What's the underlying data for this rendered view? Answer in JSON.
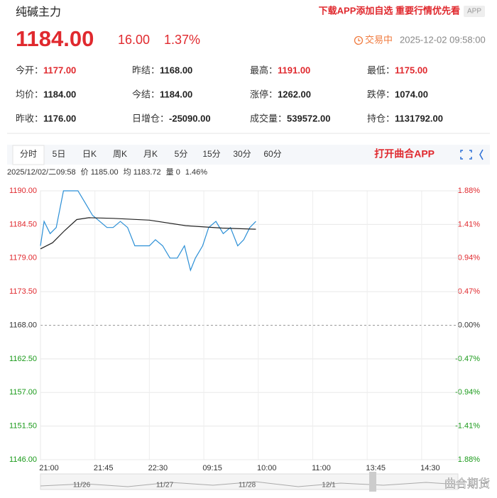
{
  "header": {
    "title": "纯碱主力",
    "promo": "下载APP添加自选 重要行情优先看",
    "badge": "APP"
  },
  "quote": {
    "price": "1184.00",
    "change": "16.00",
    "percent": "1.37%",
    "status": "交易中",
    "time": "2025-12-02 09:58:00"
  },
  "stats": [
    [
      {
        "label": "今开：",
        "value": "1177.00",
        "color": "#e0292e"
      },
      {
        "label": "昨结：",
        "value": "1168.00"
      },
      {
        "label": "最高：",
        "value": "1191.00",
        "color": "#e0292e"
      },
      {
        "label": "最低：",
        "value": "1175.00",
        "color": "#e0292e"
      }
    ],
    [
      {
        "label": "均价：",
        "value": "1184.00"
      },
      {
        "label": "今结：",
        "value": "1184.00"
      },
      {
        "label": "涨停：",
        "value": "1262.00"
      },
      {
        "label": "跌停：",
        "value": "1074.00"
      }
    ],
    [
      {
        "label": "昨收：",
        "value": "1176.00"
      },
      {
        "label": "日增仓：",
        "value": "-25090.00"
      },
      {
        "label": "成交量：",
        "value": "539572.00"
      },
      {
        "label": "持仓：",
        "value": "1131792.00"
      }
    ]
  ],
  "tabs": [
    "分时",
    "5日",
    "日K",
    "周K",
    "月K",
    "5分",
    "15分",
    "30分",
    "60分"
  ],
  "open_app": "打开曲合APP",
  "info": [
    "2025/12/02/二09:58",
    "价 1185.00",
    "均 1183.72",
    "量 0",
    "1.46%"
  ],
  "chart_data": {
    "type": "line",
    "xlim": [
      0,
      345
    ],
    "xticks": [
      {
        "value": 0,
        "label": "21:00"
      },
      {
        "value": 45,
        "label": "21:45"
      },
      {
        "value": 90,
        "label": "22:30"
      },
      {
        "value": 135,
        "label": "09:15"
      },
      {
        "value": 180,
        "label": "10:00"
      },
      {
        "value": 225,
        "label": "11:00"
      },
      {
        "value": 270,
        "label": "13:45"
      },
      {
        "value": 315,
        "label": "14:30"
      }
    ],
    "ylim": [
      1146,
      1190
    ],
    "yticks": [
      {
        "value": 1190,
        "label": "1190.00"
      },
      {
        "value": 1184.5,
        "label": "1184.50"
      },
      {
        "value": 1179,
        "label": "1179.00"
      },
      {
        "value": 1173.5,
        "label": "1173.50"
      },
      {
        "value": 1168,
        "label": "1168.00"
      },
      {
        "value": 1162.5,
        "label": "1162.50"
      },
      {
        "value": 1157,
        "label": "1157.00"
      },
      {
        "value": 1151.5,
        "label": "1151.50"
      },
      {
        "value": 1146,
        "label": "1146.00"
      }
    ],
    "y2lim": [
      -1.88,
      1.88
    ],
    "y2ticks": [
      {
        "value": 1.88,
        "label": "1.88%"
      },
      {
        "value": 1.41,
        "label": "1.41%"
      },
      {
        "value": 0.94,
        "label": "0.94%"
      },
      {
        "value": 0.47,
        "label": "0.47%"
      },
      {
        "value": 0,
        "label": "0.00%"
      },
      {
        "value": -0.47,
        "label": "-0.47%"
      },
      {
        "value": -0.94,
        "label": "-0.94%"
      },
      {
        "value": -1.41,
        "label": "-1.41%"
      },
      {
        "value": -1.88,
        "label": "-1.88%"
      }
    ],
    "grid": true,
    "series": [
      {
        "color": "#2b8fd6",
        "x": [
          0,
          3,
          8,
          13,
          19,
          25,
          31,
          37,
          43,
          49,
          55,
          60,
          66,
          72,
          78,
          84,
          90,
          95,
          101,
          107,
          113,
          119,
          124,
          128,
          134,
          139,
          145,
          151,
          157,
          163,
          168,
          173,
          178
        ],
        "values": [
          1181,
          1185,
          1183,
          1184,
          1190,
          1190,
          1190,
          1188,
          1186,
          1185,
          1184,
          1184,
          1185,
          1184,
          1181,
          1181,
          1181,
          1182,
          1181,
          1179,
          1179,
          1181,
          1177,
          1179,
          1181,
          1184,
          1185,
          1183,
          1184,
          1181,
          1182,
          1184,
          1185
        ]
      },
      {
        "color": "#222222",
        "x": [
          0,
          10,
          20,
          30,
          40,
          60,
          90,
          120,
          150,
          178
        ],
        "values": [
          1180.5,
          1181.5,
          1183.5,
          1185.3,
          1185.6,
          1185.5,
          1185.2,
          1184.3,
          1183.9,
          1183.72
        ]
      }
    ]
  },
  "navigator": [
    "11/26",
    "11/27",
    "11/28",
    "12/1"
  ],
  "watermark": "曲合期货"
}
